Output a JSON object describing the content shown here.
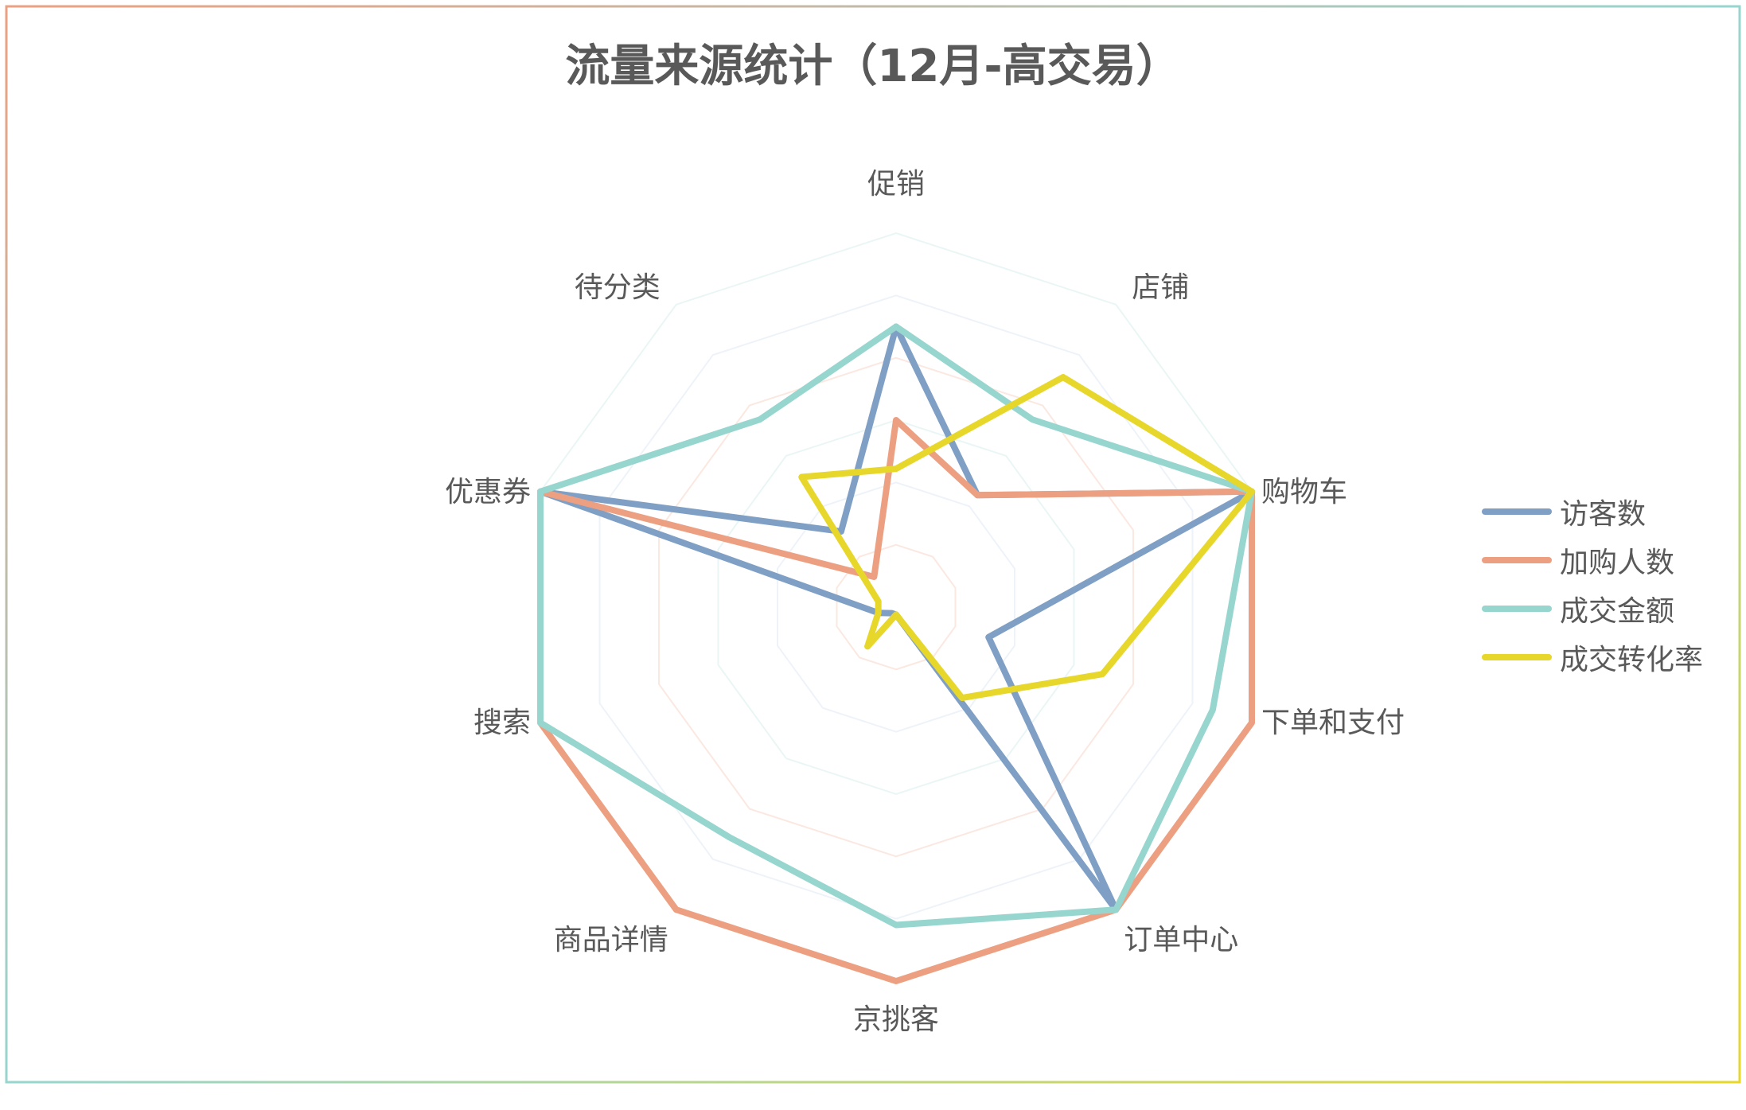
{
  "chart_data": {
    "type": "radar",
    "title": "流量来源统计（12月-高交易）",
    "categories": [
      "促销",
      "店铺",
      "购物车",
      "下单和支付",
      "订单中心",
      "京挑客",
      "商品详情",
      "搜索",
      "优惠券",
      "待分类"
    ],
    "rmax": 10,
    "rings": 6,
    "legend_position": "right",
    "series": [
      {
        "name": "访客数",
        "color": "#7f9fc5",
        "values": [
          7.5,
          3.7,
          10,
          2.6,
          10,
          0.2,
          0.2,
          0.5,
          10,
          2.5
        ]
      },
      {
        "name": "加购人数",
        "color": "#eca081",
        "values": [
          5.0,
          3.7,
          10,
          10,
          10,
          10,
          10,
          10,
          10,
          1.0
        ]
      },
      {
        "name": "成交金额",
        "color": "#97d5cf",
        "values": [
          7.5,
          6.2,
          10,
          8.9,
          10,
          8.5,
          7.6,
          10,
          10,
          6.2
        ]
      },
      {
        "name": "成交转化率",
        "color": "#e7d72a",
        "values": [
          3.7,
          7.6,
          10,
          5.8,
          3.0,
          0.2,
          1.3,
          0.5,
          0.5,
          4.3
        ]
      }
    ],
    "grid_colors": [
      "#fbe8e1",
      "#eef3f9",
      "#eaf6f5",
      "#fbe8e1",
      "#eef3f9",
      "#eaf6f5"
    ]
  }
}
